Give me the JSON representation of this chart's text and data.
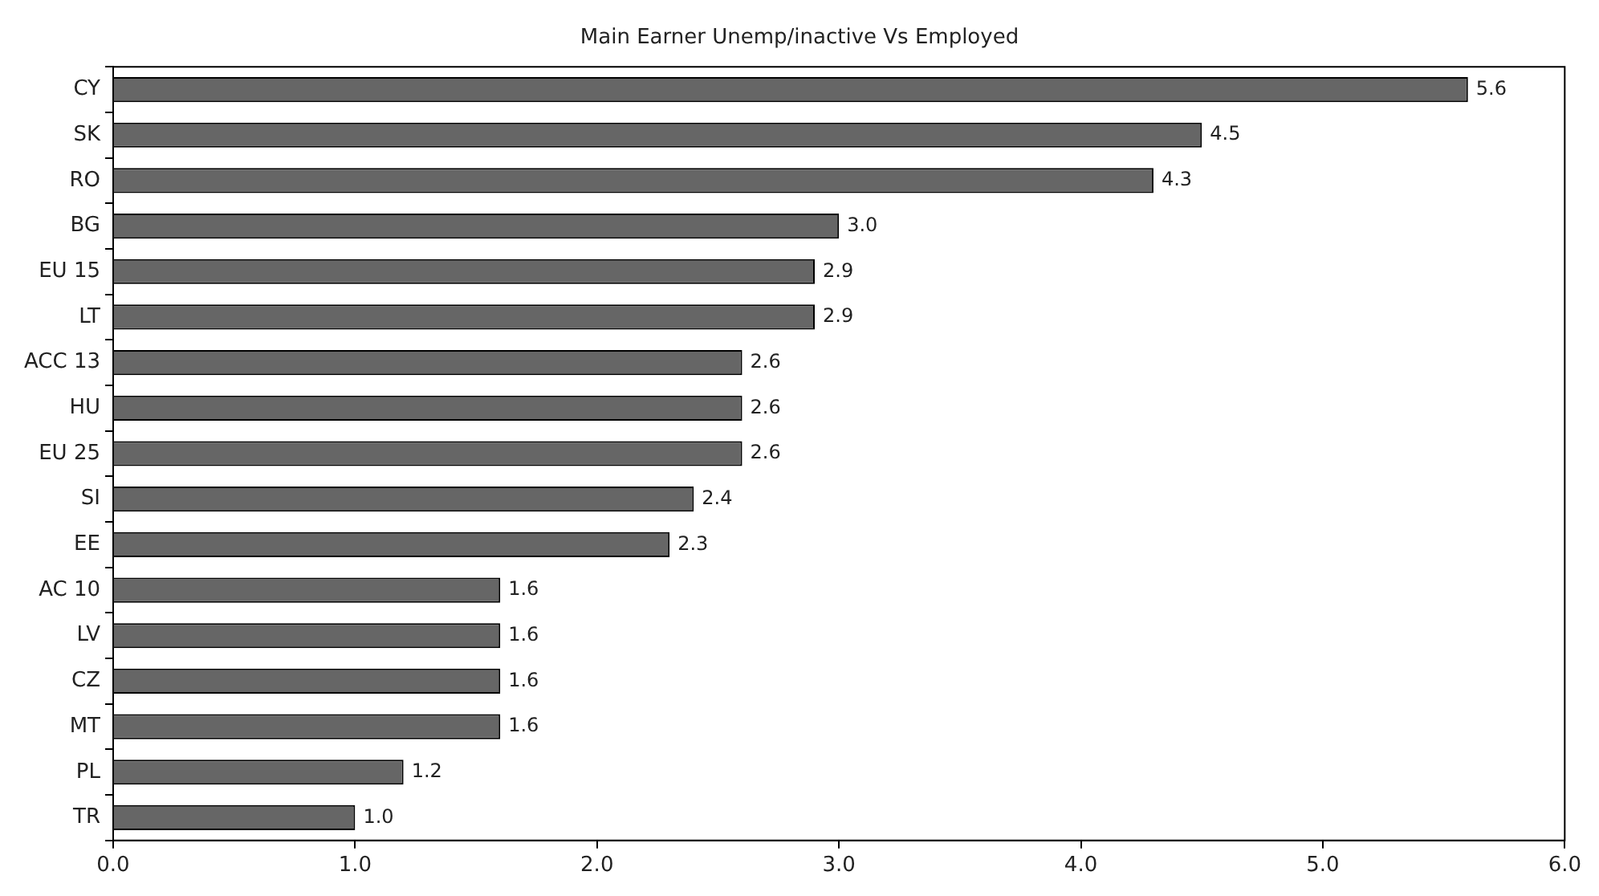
{
  "chart_data": {
    "type": "bar",
    "orientation": "horizontal",
    "title": "Main Earner Unemp/inactive Vs Employed",
    "categories": [
      "CY",
      "SK",
      "RO",
      "BG",
      "EU 15",
      "LT",
      "ACC 13",
      "HU",
      "EU 25",
      "SI",
      "EE",
      "AC 10",
      "LV",
      "CZ",
      "MT",
      "PL",
      "TR"
    ],
    "values": [
      5.6,
      4.5,
      4.3,
      3.0,
      2.9,
      2.9,
      2.6,
      2.6,
      2.6,
      2.4,
      2.3,
      1.6,
      1.6,
      1.6,
      1.6,
      1.2,
      1.0
    ],
    "value_labels": [
      "5.6",
      "4.5",
      "4.3",
      "3.0",
      "2.9",
      "2.9",
      "2.6",
      "2.6",
      "2.6",
      "2.4",
      "2.3",
      "1.6",
      "1.6",
      "1.6",
      "1.6",
      "1.2",
      "1.0"
    ],
    "color": "#666666",
    "xlim": [
      0,
      6
    ],
    "xticks": [
      {
        "value": 0,
        "label": "0.0"
      },
      {
        "value": 1,
        "label": "1.0"
      },
      {
        "value": 2,
        "label": "2.0"
      },
      {
        "value": 3,
        "label": "3.0"
      },
      {
        "value": 4,
        "label": "4.0"
      },
      {
        "value": 5,
        "label": "5.0"
      },
      {
        "value": 6,
        "label": "6.0"
      }
    ],
    "grid": false,
    "legend": false
  }
}
